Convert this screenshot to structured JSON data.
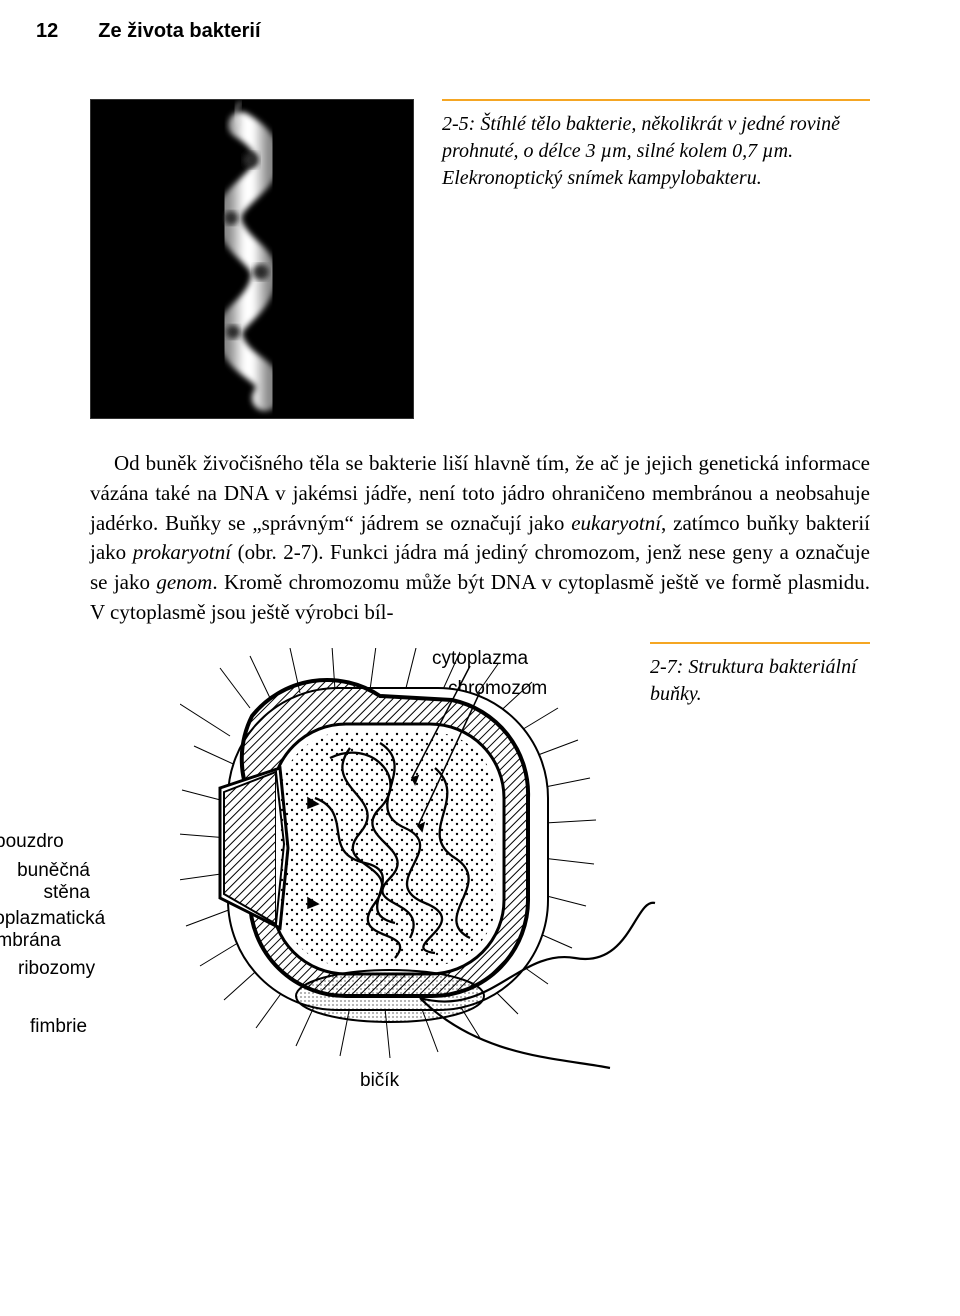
{
  "colors": {
    "text": "#000000",
    "background": "#ffffff",
    "rule_orange": "#f5a623",
    "micrograph_bg": "#000000",
    "bacteria_light": "#f5f5f5",
    "bacteria_mid": "#bdbdbd",
    "bacteria_dark": "#555555"
  },
  "header": {
    "page_number": "12",
    "chapter": "Ze života bakterií"
  },
  "fig1": {
    "caption": "2-5: Štíhlé tělo bakterie, několikrát v jedné rovině prohnuté, o délce 3 µm, silné kolem 0,7 µm. Elekronoptický snímek kampylobakteru."
  },
  "body": {
    "text": "Od buněk živočišného těla se bakterie liší hlavně tím, že ač je jejich genetická informace vázána také na DNA v jakémsi jádře, není toto jádro ohraničeno membránou a neobsahuje jadérko. Buňky se „správným“ jádrem se označují jako <em>eukaryotní</em>, zatímco buňky bakterií jako <em>prokaryotní</em> (obr. 2-7). Funkci jádra má jediný chromozom, jenž nese geny a označuje se jako <em>genom</em>. Kromě chromozomu může být DNA v cytoplasmě ještě ve formě plasmidu. V cytoplasmě jsou ještě výrobci bíl-"
  },
  "fig2": {
    "caption": "2-7: Struktura bakteriální buňky.",
    "labels": {
      "cytoplazma": "cytoplazma",
      "chromozom": "chromozom",
      "pouzdro": "pouzdro",
      "bunecna_stena": "buněčná\nstěna",
      "cyto_membrana": "cytoplazmatická\nmembrána",
      "ribozomy": "ribozomy",
      "fimbrie": "fimbrie",
      "bicik": "bičík"
    }
  }
}
